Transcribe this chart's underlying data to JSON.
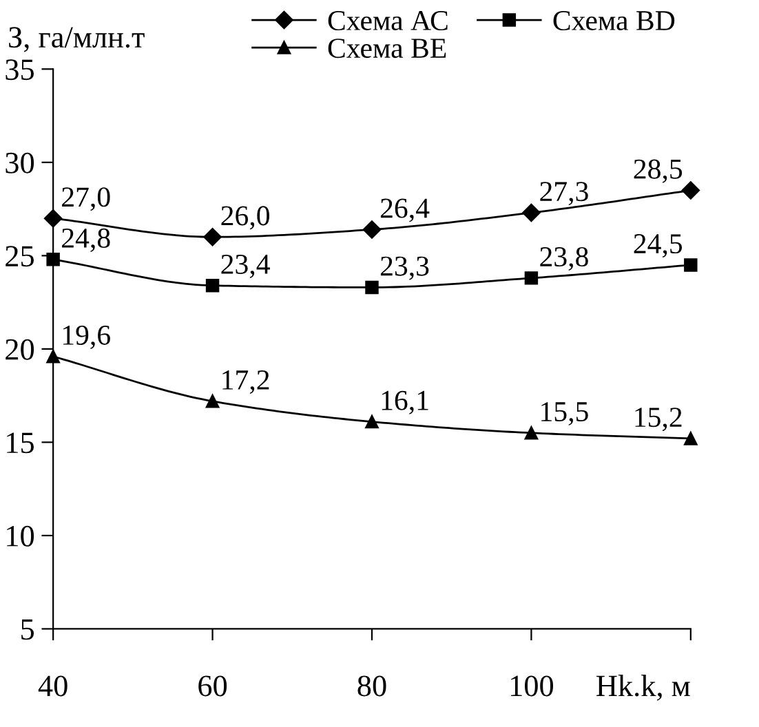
{
  "chart_data": {
    "type": "line",
    "xlabel": "Hk.k, м",
    "ylabel": "З, га/млн.т",
    "x": [
      40,
      60,
      80,
      100,
      120
    ],
    "series": [
      {
        "name": "Схема АС",
        "color": "#000000",
        "marker": "diamond",
        "values": [
          27.0,
          26.0,
          26.4,
          27.3,
          28.5
        ],
        "value_labels": [
          "27,0",
          "26,0",
          "26,4",
          "27,3",
          "28,5"
        ]
      },
      {
        "name": "Схема BD",
        "color": "#000000",
        "marker": "square",
        "values": [
          24.8,
          23.4,
          23.3,
          23.8,
          24.5
        ],
        "value_labels": [
          "24,8",
          "23,4",
          "23,3",
          "23,8",
          "24,5"
        ]
      },
      {
        "name": "Схема ВЕ",
        "color": "#000000",
        "marker": "triangle",
        "values": [
          19.6,
          17.2,
          16.1,
          15.5,
          15.2
        ],
        "value_labels": [
          "19,6",
          "17,2",
          "16,1",
          "15,5",
          "15,2"
        ]
      }
    ],
    "xlim": [
      40,
      120
    ],
    "xticks": [
      40,
      60,
      80,
      100,
      {
        "value": 120,
        "label": null
      }
    ],
    "ylim": [
      5,
      35
    ],
    "yticks": [
      5,
      10,
      15,
      20,
      25,
      30,
      35
    ],
    "grid": false,
    "legend": "top",
    "line_style": "solid"
  }
}
